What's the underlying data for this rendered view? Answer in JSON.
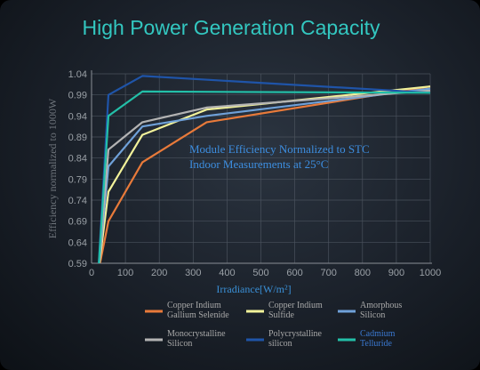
{
  "title": "High Power Generation Capacity",
  "annotation": [
    "Module Efficiency Normalized to STC",
    "Indoor Measurements at 25°C"
  ],
  "chart_data": {
    "type": "line",
    "title": "High Power Generation Capacity",
    "xlabel": "Irradiance[W/m²]",
    "ylabel": "Efficiency normalized to 1000W",
    "xlim": [
      0,
      1000
    ],
    "ylim": [
      0.59,
      1.04
    ],
    "xticks": [
      0,
      100,
      200,
      300,
      400,
      500,
      600,
      700,
      800,
      900,
      1000
    ],
    "yticks": [
      0.59,
      0.64,
      0.69,
      0.74,
      0.79,
      0.84,
      0.89,
      0.94,
      0.99,
      1.04
    ],
    "grid": true,
    "series": [
      {
        "name": "Copper Indium Gallium Selenide",
        "color": "#e87a3a",
        "points": [
          [
            20,
            0.57
          ],
          [
            50,
            0.69
          ],
          [
            150,
            0.83
          ],
          [
            340,
            0.925
          ],
          [
            1000,
            1.01
          ]
        ]
      },
      {
        "name": "Copper Indium Sulfide",
        "color": "#f2f29a",
        "points": [
          [
            20,
            0.57
          ],
          [
            50,
            0.76
          ],
          [
            150,
            0.895
          ],
          [
            340,
            0.955
          ],
          [
            1000,
            1.01
          ]
        ]
      },
      {
        "name": "Amorphous Silicon",
        "color": "#6fa1d9",
        "points": [
          [
            20,
            0.57
          ],
          [
            50,
            0.82
          ],
          [
            150,
            0.915
          ],
          [
            340,
            0.94
          ],
          [
            1000,
            1.005
          ]
        ]
      },
      {
        "name": "Monocrystalline Silicon",
        "color": "#b3b3b3",
        "points": [
          [
            20,
            0.57
          ],
          [
            50,
            0.86
          ],
          [
            150,
            0.925
          ],
          [
            340,
            0.96
          ],
          [
            1000,
            1.0
          ]
        ]
      },
      {
        "name": "Polycrystalline silicon",
        "color": "#1f54a8",
        "points": [
          [
            20,
            0.57
          ],
          [
            50,
            0.99
          ],
          [
            150,
            1.035
          ],
          [
            1000,
            0.995
          ]
        ]
      },
      {
        "name": "Cadmium Telluride",
        "color": "#23bfa8",
        "points": [
          [
            20,
            0.57
          ],
          [
            50,
            0.94
          ],
          [
            150,
            0.998
          ],
          [
            1000,
            0.995
          ]
        ]
      }
    ],
    "legend": [
      {
        "lines": [
          "Copper Indium",
          "Gallium Selenide"
        ],
        "color": "#e87a3a",
        "text_color": "#a9a9a9"
      },
      {
        "lines": [
          "Copper Indium",
          "Sulfide"
        ],
        "color": "#f2f29a",
        "text_color": "#a9a9a9"
      },
      {
        "lines": [
          "Amorphous",
          "Silicon"
        ],
        "color": "#6fa1d9",
        "text_color": "#a9a9a9"
      },
      {
        "lines": [
          "Monocrystalline",
          "Silicon"
        ],
        "color": "#b3b3b3",
        "text_color": "#a9a9a9"
      },
      {
        "lines": [
          "Polycrystalline",
          "silicon"
        ],
        "color": "#1f54a8",
        "text_color": "#a9a9a9"
      },
      {
        "lines": [
          "Cadmium",
          "Telluride"
        ],
        "color": "#23bfa8",
        "text_color": "#3a78d0"
      }
    ]
  }
}
